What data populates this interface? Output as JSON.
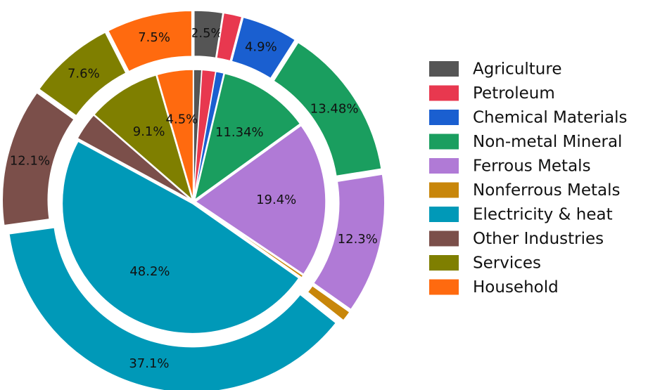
{
  "chart_data": {
    "type": "pie",
    "categories": [
      "Agriculture",
      "Petroleum",
      "Chemical Materials",
      "Non-metal Mineral",
      "Ferrous Metals",
      "Nonferrous Metals",
      "Electricity & heat",
      "Other Industries",
      "Services",
      "Household"
    ],
    "colors": [
      "#555555",
      "#e8384f",
      "#1a5fd0",
      "#1a9e5f",
      "#b07ad6",
      "#c8860a",
      "#0099b8",
      "#7b4f4a",
      "#7f7f00",
      "#ff6a0f"
    ],
    "series": [
      {
        "values": [
          1.0,
          1.7,
          1.0,
          11.34,
          19.4,
          0.3,
          48.2,
          3.46,
          9.1,
          4.5
        ],
        "value_labels": [
          null,
          null,
          null,
          "11.34%",
          "19.4%",
          null,
          "48.2%",
          null,
          "9.1%",
          "4.5%"
        ]
      },
      {
        "values": [
          2.5,
          1.6,
          4.9,
          13.48,
          12.3,
          0.9,
          37.1,
          12.1,
          7.6,
          7.5
        ],
        "value_labels": [
          "2.5%",
          null,
          "4.9%",
          "13.48%",
          "12.3%",
          null,
          "37.1%",
          "12.1%",
          "7.6%",
          "7.5%"
        ]
      }
    ]
  }
}
